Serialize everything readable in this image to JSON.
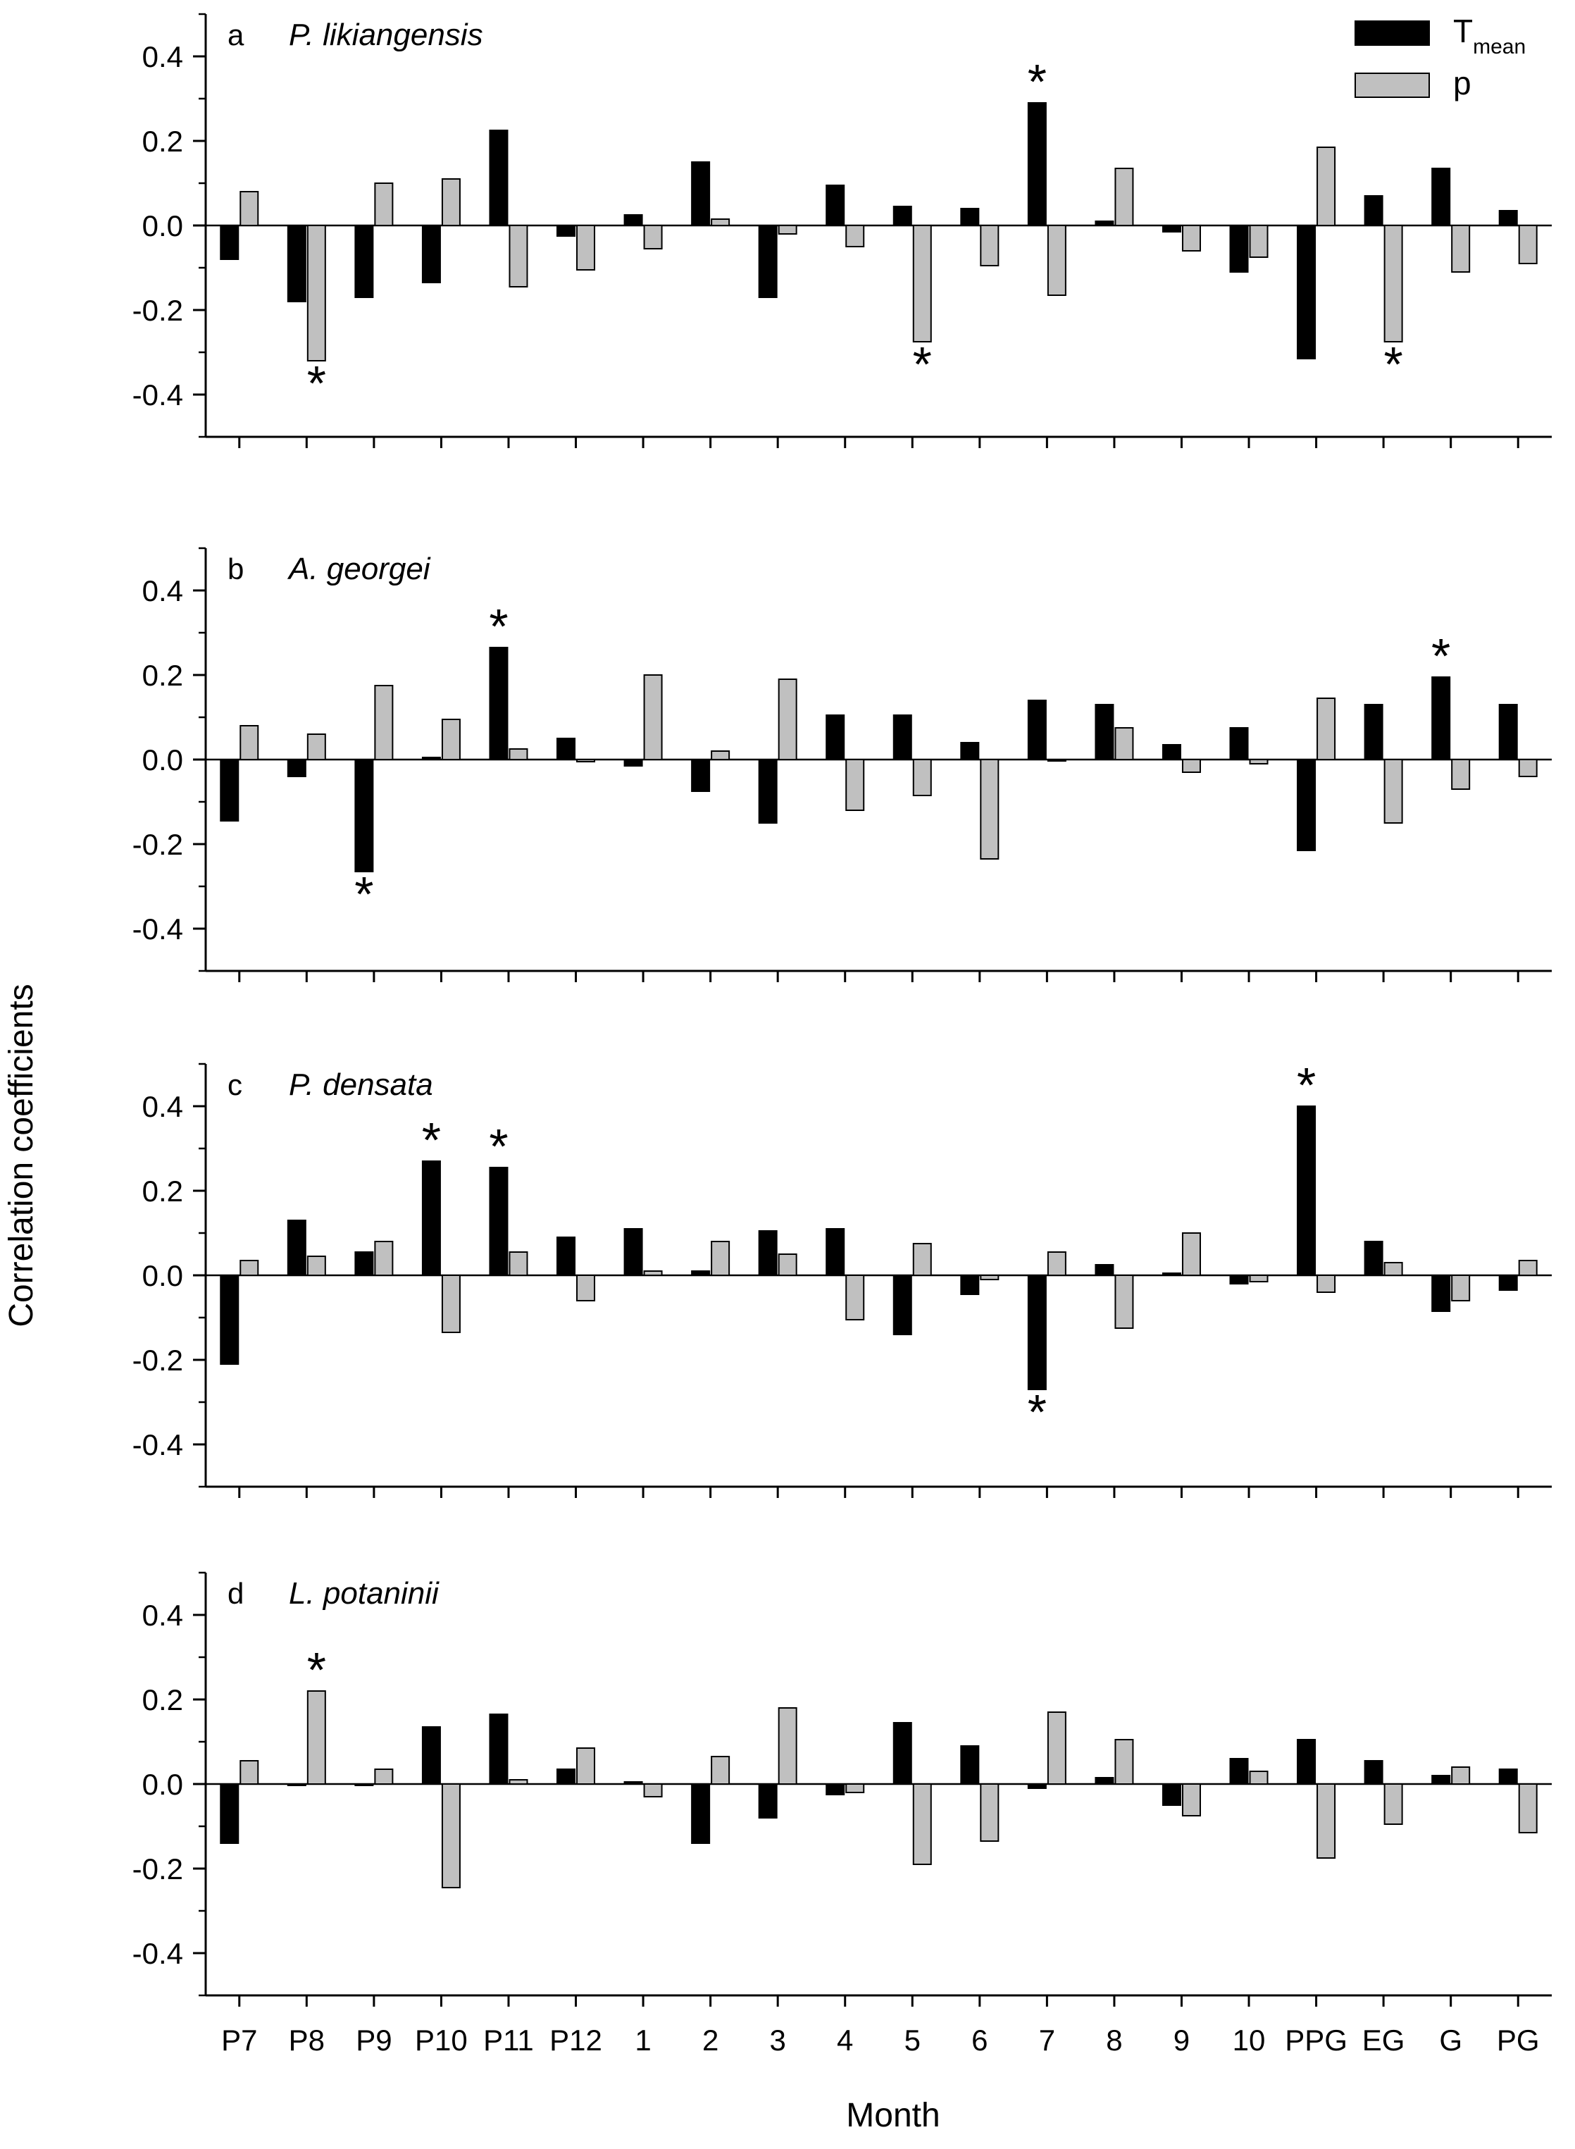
{
  "chart_data": {
    "type": "bar",
    "categories": [
      "P7",
      "P8",
      "P9",
      "P10",
      "P11",
      "P12",
      "1",
      "2",
      "3",
      "4",
      "5",
      "6",
      "7",
      "8",
      "9",
      "10",
      "PPG",
      "EG",
      "G",
      "PG"
    ],
    "xlabel": "Month",
    "ylabel": "Correlation coefficients",
    "legend": {
      "placement": "top-right",
      "entries": [
        {
          "series": "tmean",
          "label": "T",
          "subscript": "mean",
          "color": "#000000"
        },
        {
          "series": "p",
          "label": "p",
          "subscript": "",
          "color": "#c0c0c0"
        }
      ]
    },
    "series_colors": {
      "tmean": "#000000",
      "p": "#c0c0c0"
    },
    "yticks": [
      0.4,
      0.2,
      0.0,
      -0.2,
      -0.4
    ],
    "ytick_labels": [
      "0.4",
      "0.2",
      "0.0",
      "-0.2",
      "-0.4"
    ],
    "ylim": [
      -0.5,
      0.5
    ],
    "significance_marker": "*",
    "panels": [
      {
        "letter": "a",
        "title": "P. likiangensis",
        "tmean": [
          -0.08,
          -0.18,
          -0.17,
          -0.135,
          0.225,
          -0.025,
          0.025,
          0.15,
          -0.17,
          0.095,
          0.045,
          0.04,
          0.29,
          0.01,
          -0.015,
          -0.11,
          -0.315,
          0.07,
          0.135,
          0.035
        ],
        "p": [
          0.08,
          -0.32,
          0.1,
          0.11,
          -0.145,
          -0.105,
          -0.055,
          0.015,
          -0.02,
          -0.05,
          -0.275,
          -0.095,
          -0.165,
          0.135,
          -0.06,
          -0.075,
          0.185,
          -0.275,
          -0.11,
          -0.09
        ],
        "significant": [
          {
            "series": "p",
            "index": 1
          },
          {
            "series": "p",
            "index": 10
          },
          {
            "series": "tmean",
            "index": 12
          },
          {
            "series": "p",
            "index": 17
          }
        ]
      },
      {
        "letter": "b",
        "title": "A. georgei",
        "tmean": [
          -0.145,
          -0.04,
          -0.265,
          0.005,
          0.265,
          0.05,
          -0.015,
          -0.075,
          -0.15,
          0.105,
          0.105,
          0.04,
          0.14,
          0.13,
          0.035,
          0.075,
          -0.215,
          0.13,
          0.195,
          0.13
        ],
        "p": [
          0.08,
          0.06,
          0.175,
          0.095,
          0.025,
          -0.005,
          0.2,
          0.02,
          0.19,
          -0.12,
          -0.085,
          -0.235,
          0.0,
          0.075,
          -0.03,
          -0.01,
          0.145,
          -0.15,
          -0.07,
          -0.04
        ],
        "significant": [
          {
            "series": "tmean",
            "index": 2
          },
          {
            "series": "tmean",
            "index": 4
          },
          {
            "series": "tmean",
            "index": 18
          }
        ]
      },
      {
        "letter": "c",
        "title": "P. densata",
        "tmean": [
          -0.21,
          0.13,
          0.055,
          0.27,
          0.255,
          0.09,
          0.11,
          0.01,
          0.105,
          0.11,
          -0.14,
          -0.045,
          -0.27,
          0.025,
          0.005,
          -0.02,
          0.4,
          0.08,
          -0.085,
          -0.035
        ],
        "p": [
          0.035,
          0.045,
          0.08,
          -0.135,
          0.055,
          -0.06,
          0.01,
          0.08,
          0.05,
          -0.105,
          0.075,
          -0.01,
          0.055,
          -0.125,
          0.1,
          -0.015,
          -0.04,
          0.03,
          -0.06,
          0.035
        ],
        "significant": [
          {
            "series": "tmean",
            "index": 3
          },
          {
            "series": "tmean",
            "index": 4
          },
          {
            "series": "tmean",
            "index": 12
          },
          {
            "series": "tmean",
            "index": 16
          }
        ]
      },
      {
        "letter": "d",
        "title": "L. potaninii",
        "tmean": [
          -0.14,
          -0.002,
          -0.002,
          0.135,
          0.165,
          0.035,
          0.005,
          -0.14,
          -0.08,
          -0.025,
          0.145,
          0.09,
          -0.01,
          0.015,
          -0.05,
          0.06,
          0.105,
          0.055,
          0.02,
          0.035
        ],
        "p": [
          0.055,
          0.22,
          0.035,
          -0.245,
          0.01,
          0.085,
          -0.03,
          0.065,
          0.18,
          -0.02,
          -0.19,
          -0.135,
          0.17,
          0.105,
          -0.075,
          0.03,
          -0.175,
          -0.095,
          0.04,
          -0.115
        ],
        "significant": [
          {
            "series": "p",
            "index": 1
          }
        ]
      }
    ]
  }
}
